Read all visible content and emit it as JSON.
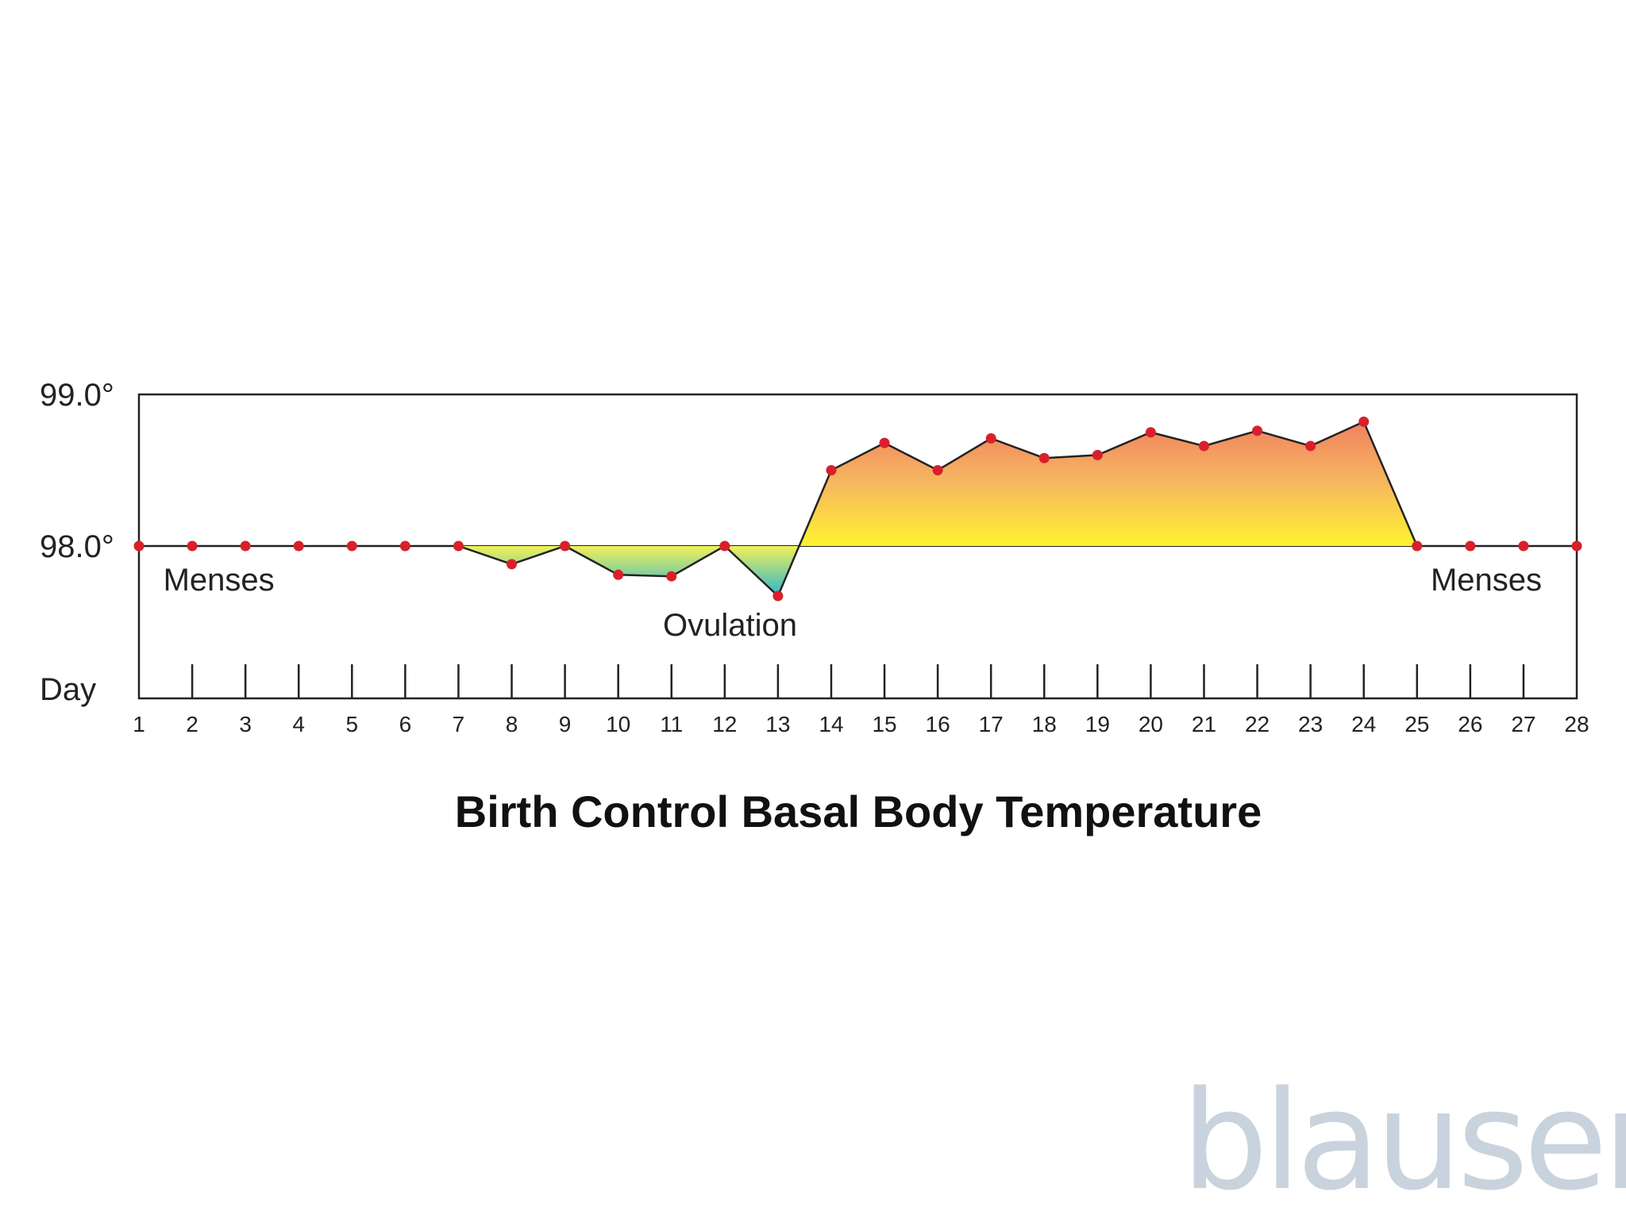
{
  "chart_data": {
    "type": "area",
    "title": "Birth Control Basal Body Temperature",
    "xlabel": "Day",
    "ylabel": "",
    "ylim": [
      97.35,
      99.0
    ],
    "yticks": [
      {
        "value": 98.0,
        "label": "98.0°"
      },
      {
        "value": 99.0,
        "label": "99.0°"
      }
    ],
    "baseline": 98.0,
    "x": [
      1,
      2,
      3,
      4,
      5,
      6,
      7,
      8,
      9,
      10,
      11,
      12,
      13,
      14,
      15,
      16,
      17,
      18,
      19,
      20,
      21,
      22,
      23,
      24,
      25,
      26,
      27,
      28
    ],
    "values": [
      98.0,
      98.0,
      98.0,
      98.0,
      98.0,
      98.0,
      98.0,
      97.88,
      98.0,
      97.81,
      97.8,
      98.0,
      97.67,
      98.5,
      98.68,
      98.5,
      98.71,
      98.58,
      98.6,
      98.75,
      98.66,
      98.76,
      98.66,
      98.82,
      98.0,
      98.0,
      98.0,
      98.0
    ],
    "annotations": [
      {
        "text": "Menses",
        "day": 2.5
      },
      {
        "text": "Ovulation",
        "day": 12.1
      },
      {
        "text": "Menses",
        "day": 26.3
      }
    ],
    "grid": false,
    "colors": {
      "line": "#222222",
      "point": "#d8202b",
      "above_top": "#f08060",
      "above_mid": "#f6b860",
      "above_bottom": "#fff22e",
      "below_top": "#f2f05a",
      "below_bottom": "#2ab5cf",
      "axis": "#222222",
      "watermark": "#c9d3de"
    }
  },
  "watermark": "blausen"
}
